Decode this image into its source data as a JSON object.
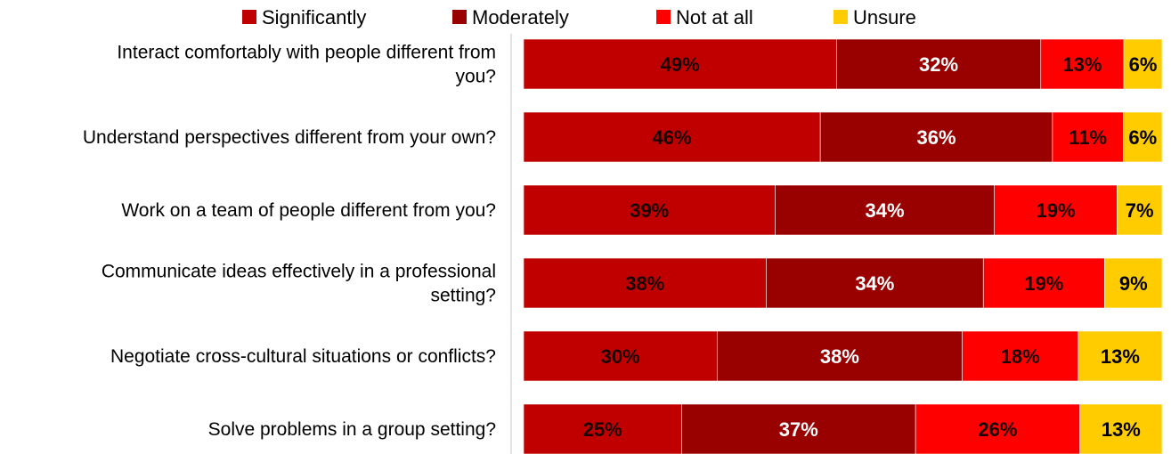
{
  "chart_data": {
    "type": "bar",
    "orientation": "horizontal",
    "stacked": true,
    "percent_stacked": true,
    "categories": [
      "Interact comfortably with people different from you?",
      "Understand perspectives different from your own?",
      "Work on a team of people different from you?",
      "Communicate ideas effectively in a professional setting?",
      "Negotiate cross-cultural situations or conflicts?",
      "Solve problems in a group setting?"
    ],
    "series": [
      {
        "name": "Significantly",
        "color": "#c00000",
        "label_color": "#1a0000",
        "values": [
          49,
          46,
          39,
          38,
          30,
          25
        ],
        "labels": [
          "49%",
          "46%",
          "39%",
          "38%",
          "30%",
          "25%"
        ]
      },
      {
        "name": "Moderately",
        "color": "#990000",
        "label_color": "#ffffff",
        "values": [
          32,
          36,
          34,
          34,
          38,
          37
        ],
        "labels": [
          "32%",
          "36%",
          "34%",
          "34%",
          "38%",
          "37%"
        ]
      },
      {
        "name": "Not at all",
        "color": "#ff0000",
        "label_color": "#1a0000",
        "values": [
          13,
          11,
          19,
          19,
          18,
          26
        ],
        "labels": [
          "13%",
          "11%",
          "19%",
          "19%",
          "18%",
          "26%"
        ]
      },
      {
        "name": "Unsure",
        "color": "#ffcc00",
        "label_color": "#000000",
        "values": [
          6,
          6,
          7,
          9,
          13,
          13
        ],
        "labels": [
          "6%",
          "6%",
          "7%",
          "9%",
          "13%",
          "13%"
        ]
      }
    ],
    "legend_position": "top",
    "grid": false,
    "xlim": [
      0,
      100
    ],
    "title": "",
    "xlabel": "",
    "ylabel": ""
  }
}
